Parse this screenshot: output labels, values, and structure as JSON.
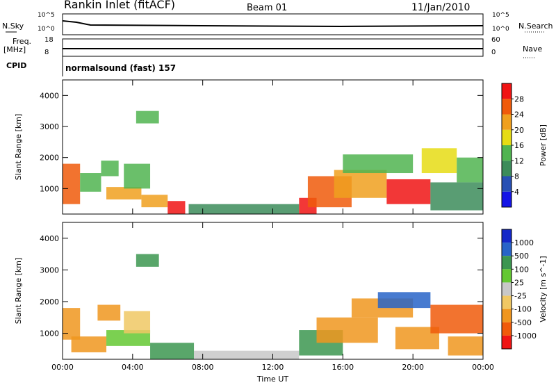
{
  "header": {
    "station": "Rankin Inlet (fitACF)",
    "beam": "Beam 01",
    "date": "11/Jan/2010"
  },
  "top_panels": {
    "nsky_label": "N.Sky",
    "nsky_ticks": [
      "10^5",
      "10^0"
    ],
    "nsearch_label": "N.Search",
    "nsearch_ticks": [
      "10^5",
      "10^0"
    ],
    "freq_label": "Freq.",
    "freq_unit": "[MHz]",
    "freq_ticks": [
      "18",
      "8"
    ],
    "nave_label": "Nave",
    "nave_ticks": [
      "60",
      "0"
    ],
    "cpid_label": "CPID",
    "cpid_value": "normalsound (fast) 157"
  },
  "colors": {
    "power": [
      "#1414e6",
      "#2850b4",
      "#3c8c5a",
      "#50b450",
      "#e6dc14",
      "#f0a01e",
      "#f05a0a",
      "#f01414"
    ],
    "velocity": [
      "#1428c8",
      "#2864c8",
      "#3c9650",
      "#64c832",
      "#c8c8c8",
      "#f0c864",
      "#f0961e",
      "#f05a0a",
      "#f01414"
    ]
  },
  "chart_data": [
    {
      "type": "heatmap",
      "quantity": "power",
      "xlabel": "Time UT",
      "ylabel": "Slant Range [km]",
      "x_ticks": [
        "00:00",
        "04:00",
        "08:00",
        "12:00",
        "16:00",
        "20:00",
        "00:00"
      ],
      "xlim_hours": [
        0,
        24
      ],
      "ylim_km": [
        180,
        4500
      ],
      "y_ticks": [
        1000,
        2000,
        3000,
        4000
      ],
      "colorbar": {
        "label": "Power [dB]",
        "ticks": [
          4,
          8,
          12,
          16,
          20,
          24,
          28
        ],
        "range": [
          0,
          32
        ]
      },
      "regions": [
        {
          "t0": 0.0,
          "t1": 1.0,
          "r0": 500,
          "r1": 1800,
          "value": 26
        },
        {
          "t0": 1.0,
          "t1": 2.2,
          "r0": 900,
          "r1": 1500,
          "value": 12
        },
        {
          "t0": 2.2,
          "t1": 3.2,
          "r0": 1400,
          "r1": 1900,
          "value": 14
        },
        {
          "t0": 2.5,
          "t1": 4.5,
          "r0": 650,
          "r1": 1050,
          "value": 22
        },
        {
          "t0": 3.5,
          "t1": 5.0,
          "r0": 1000,
          "r1": 1800,
          "value": 14
        },
        {
          "t0": 4.2,
          "t1": 5.5,
          "r0": 3100,
          "r1": 3500,
          "value": 13
        },
        {
          "t0": 4.5,
          "t1": 6.0,
          "r0": 400,
          "r1": 800,
          "value": 23
        },
        {
          "t0": 6.0,
          "t1": 7.0,
          "r0": 180,
          "r1": 600,
          "value": 30
        },
        {
          "t0": 7.2,
          "t1": 13.5,
          "r0": 180,
          "r1": 500,
          "value": 8
        },
        {
          "t0": 13.5,
          "t1": 14.5,
          "r0": 180,
          "r1": 700,
          "value": 30
        },
        {
          "t0": 14.0,
          "t1": 16.5,
          "r0": 400,
          "r1": 1400,
          "value": 26
        },
        {
          "t0": 15.5,
          "t1": 18.5,
          "r0": 700,
          "r1": 1600,
          "value": 22
        },
        {
          "t0": 16.0,
          "t1": 20.0,
          "r0": 1500,
          "r1": 2100,
          "value": 14
        },
        {
          "t0": 18.5,
          "t1": 21.0,
          "r0": 500,
          "r1": 1300,
          "value": 28
        },
        {
          "t0": 20.5,
          "t1": 22.5,
          "r0": 1500,
          "r1": 2300,
          "value": 18
        },
        {
          "t0": 21.0,
          "t1": 24.0,
          "r0": 300,
          "r1": 1200,
          "value": 10
        },
        {
          "t0": 22.5,
          "t1": 24.0,
          "r0": 1200,
          "r1": 2000,
          "value": 14
        }
      ]
    },
    {
      "type": "heatmap",
      "quantity": "velocity",
      "xlabel": "Time UT",
      "ylabel": "Slant Range [km]",
      "x_ticks": [
        "00:00",
        "04:00",
        "08:00",
        "12:00",
        "16:00",
        "20:00",
        "00:00"
      ],
      "xlim_hours": [
        0,
        24
      ],
      "ylim_km": [
        180,
        4500
      ],
      "y_ticks": [
        1000,
        2000,
        3000,
        4000
      ],
      "colorbar": {
        "label": "Velocity [m s^-1]",
        "ticks": [
          "1000",
          "500",
          "100",
          "25",
          "-25",
          "-100",
          "-500",
          "-1000"
        ]
      },
      "regions": [
        {
          "t0": 0.0,
          "t1": 1.0,
          "r0": 800,
          "r1": 1800,
          "value": -300
        },
        {
          "t0": 0.5,
          "t1": 2.5,
          "r0": 400,
          "r1": 900,
          "value": -150
        },
        {
          "t0": 2.0,
          "t1": 3.3,
          "r0": 1400,
          "r1": 1900,
          "value": -250
        },
        {
          "t0": 2.5,
          "t1": 5.0,
          "r0": 600,
          "r1": 1100,
          "value": 60
        },
        {
          "t0": 3.5,
          "t1": 5.0,
          "r0": 1000,
          "r1": 1700,
          "value": -80
        },
        {
          "t0": 4.2,
          "t1": 5.5,
          "r0": 3100,
          "r1": 3500,
          "value": 300
        },
        {
          "t0": 5.0,
          "t1": 7.5,
          "r0": 180,
          "r1": 700,
          "value": 150
        },
        {
          "t0": 7.5,
          "t1": 13.5,
          "r0": 180,
          "r1": 450,
          "value": 10
        },
        {
          "t0": 13.5,
          "t1": 16.0,
          "r0": 300,
          "r1": 1100,
          "value": 120
        },
        {
          "t0": 14.5,
          "t1": 18.0,
          "r0": 700,
          "r1": 1500,
          "value": -300
        },
        {
          "t0": 16.5,
          "t1": 20.0,
          "r0": 1500,
          "r1": 2100,
          "value": -200
        },
        {
          "t0": 18.0,
          "t1": 21.0,
          "r0": 1800,
          "r1": 2300,
          "value": 600
        },
        {
          "t0": 19.0,
          "t1": 21.5,
          "r0": 500,
          "r1": 1200,
          "value": -400
        },
        {
          "t0": 21.0,
          "t1": 24.0,
          "r0": 1000,
          "r1": 1900,
          "value": -600
        },
        {
          "t0": 22.0,
          "t1": 24.0,
          "r0": 300,
          "r1": 900,
          "value": -150
        }
      ]
    }
  ]
}
